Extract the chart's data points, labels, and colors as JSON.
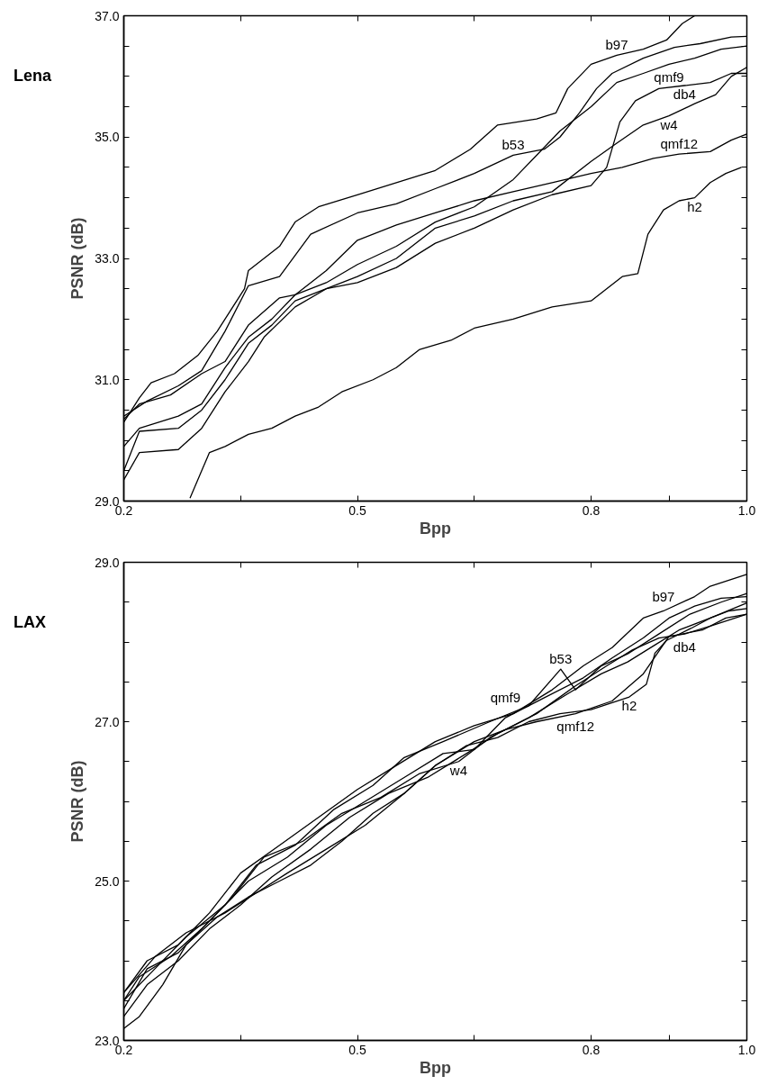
{
  "chart_data": [
    {
      "type": "line",
      "title": "Lena",
      "xlabel": "Bpp",
      "ylabel": "PSNR (dB)",
      "xlim": [
        0.2,
        1.0
      ],
      "ylim": [
        29,
        37
      ],
      "xticks": [
        {
          "value": 0.2,
          "label": "0.2"
        },
        {
          "value": 0.35,
          "label": null
        },
        {
          "value": 0.5,
          "label": "0.5"
        },
        {
          "value": 0.65,
          "label": null
        },
        {
          "value": 0.8,
          "label": "0.8"
        },
        {
          "value": 0.9,
          "label": null
        },
        {
          "value": 1.0,
          "label": "1.0"
        }
      ],
      "yticks": [
        {
          "value": 29,
          "label": "29.0"
        },
        {
          "value": 29.5,
          "label": null
        },
        {
          "value": 30,
          "label": null
        },
        {
          "value": 30.5,
          "label": null
        },
        {
          "value": 31,
          "label": "31.0"
        },
        {
          "value": 31.5,
          "label": null
        },
        {
          "value": 32,
          "label": null
        },
        {
          "value": 32.5,
          "label": null
        },
        {
          "value": 33,
          "label": "33.0"
        },
        {
          "value": 33.5,
          "label": null
        },
        {
          "value": 34,
          "label": null
        },
        {
          "value": 34.5,
          "label": null
        },
        {
          "value": 35,
          "label": "35.0"
        },
        {
          "value": 35.5,
          "label": null
        },
        {
          "value": 36,
          "label": null
        },
        {
          "value": 36.5,
          "label": null
        },
        {
          "value": 37,
          "label": "37.0"
        }
      ],
      "grid": false,
      "legend": false,
      "marker": "none",
      "line_style": "solid",
      "series": [
        {
          "name": "b97",
          "color": "#000000",
          "x": [
            0.2,
            0.22,
            0.235,
            0.265,
            0.295,
            0.32,
            0.335,
            0.355,
            0.36,
            0.4,
            0.42,
            0.45,
            0.5,
            0.55,
            0.6,
            0.645,
            0.68,
            0.73,
            0.755,
            0.77,
            0.8,
            0.833,
            0.867,
            0.897,
            0.917,
            0.933
          ],
          "values": [
            30.3,
            30.7,
            30.95,
            31.1,
            31.4,
            31.8,
            32.1,
            32.5,
            32.8,
            33.2,
            33.6,
            33.85,
            34.05,
            34.25,
            34.45,
            34.8,
            35.2,
            35.3,
            35.4,
            35.8,
            36.2,
            36.35,
            36.45,
            36.6,
            36.87,
            37.0
          ]
        },
        {
          "name": "b53",
          "color": "#000000",
          "x": [
            0.2,
            0.23,
            0.27,
            0.3,
            0.33,
            0.36,
            0.4,
            0.44,
            0.5,
            0.55,
            0.6,
            0.65,
            0.7,
            0.74,
            0.76,
            0.785,
            0.807,
            0.827,
            0.867,
            0.907,
            0.94,
            0.98,
            1.0
          ],
          "values": [
            30.4,
            30.65,
            30.9,
            31.15,
            31.8,
            32.55,
            32.7,
            33.4,
            33.75,
            33.9,
            34.15,
            34.4,
            34.7,
            34.8,
            35.0,
            35.4,
            35.8,
            36.05,
            36.3,
            36.48,
            36.54,
            36.65,
            36.66
          ]
        },
        {
          "name": "qmf9",
          "color": "#000000",
          "x": [
            0.2,
            0.22,
            0.27,
            0.3,
            0.33,
            0.36,
            0.39,
            0.42,
            0.46,
            0.5,
            0.55,
            0.6,
            0.65,
            0.7,
            0.73,
            0.76,
            0.8,
            0.833,
            0.867,
            0.9,
            0.933,
            0.967,
            1.0
          ],
          "values": [
            29.9,
            30.2,
            30.4,
            30.6,
            31.2,
            31.7,
            32.0,
            32.4,
            32.6,
            32.9,
            33.2,
            33.6,
            33.85,
            34.3,
            34.7,
            35.1,
            35.5,
            35.9,
            36.05,
            36.2,
            36.3,
            36.45,
            36.5
          ]
        },
        {
          "name": "w4",
          "color": "#000000",
          "x": [
            0.2,
            0.22,
            0.27,
            0.3,
            0.33,
            0.36,
            0.39,
            0.42,
            0.46,
            0.5,
            0.55,
            0.6,
            0.65,
            0.7,
            0.75,
            0.8,
            0.833,
            0.867,
            0.9,
            0.933,
            0.96,
            0.98,
            1.0
          ],
          "values": [
            29.5,
            30.15,
            30.2,
            30.5,
            31.0,
            31.6,
            31.9,
            32.3,
            32.5,
            32.7,
            33.0,
            33.5,
            33.7,
            33.95,
            34.1,
            34.6,
            34.9,
            35.2,
            35.35,
            35.55,
            35.7,
            36.0,
            36.15
          ]
        },
        {
          "name": "db4",
          "color": "#000000",
          "x": [
            0.2,
            0.22,
            0.27,
            0.3,
            0.33,
            0.36,
            0.38,
            0.42,
            0.46,
            0.5,
            0.55,
            0.6,
            0.65,
            0.7,
            0.75,
            0.8,
            0.82,
            0.837,
            0.857,
            0.887,
            0.92,
            0.953,
            0.98,
            1.0
          ],
          "values": [
            29.35,
            29.8,
            29.85,
            30.2,
            30.8,
            31.3,
            31.7,
            32.2,
            32.5,
            32.6,
            32.85,
            33.25,
            33.5,
            33.8,
            34.05,
            34.2,
            34.5,
            35.25,
            35.6,
            35.8,
            35.85,
            35.9,
            36.05,
            36.05
          ]
        },
        {
          "name": "qmf12",
          "color": "#000000",
          "x": [
            0.2,
            0.22,
            0.26,
            0.3,
            0.33,
            0.36,
            0.4,
            0.42,
            0.46,
            0.5,
            0.55,
            0.6,
            0.65,
            0.7,
            0.75,
            0.8,
            0.84,
            0.88,
            0.913,
            0.953,
            0.98,
            1.0
          ],
          "values": [
            30.35,
            30.6,
            30.75,
            31.1,
            31.3,
            31.9,
            32.35,
            32.4,
            32.8,
            33.3,
            33.55,
            33.75,
            33.95,
            34.1,
            34.25,
            34.4,
            34.5,
            34.65,
            34.72,
            34.76,
            34.95,
            35.05
          ]
        },
        {
          "name": "h2",
          "color": "#000000",
          "x": [
            0.285,
            0.3,
            0.31,
            0.33,
            0.36,
            0.39,
            0.42,
            0.45,
            0.48,
            0.52,
            0.55,
            0.58,
            0.62,
            0.65,
            0.7,
            0.75,
            0.8,
            0.82,
            0.84,
            0.86,
            0.873,
            0.893,
            0.913,
            0.933,
            0.953,
            0.973,
            0.993
          ],
          "values": [
            29.05,
            29.5,
            29.8,
            29.9,
            30.1,
            30.2,
            30.4,
            30.55,
            30.8,
            31.0,
            31.2,
            31.5,
            31.65,
            31.85,
            32.0,
            32.2,
            32.3,
            32.5,
            32.7,
            32.75,
            33.4,
            33.8,
            33.95,
            34.0,
            34.25,
            34.4,
            34.5
          ]
        }
      ]
    },
    {
      "type": "line",
      "title": "LAX",
      "xlabel": "Bpp",
      "ylabel": "PSNR (dB)",
      "xlim": [
        0.2,
        1.0
      ],
      "ylim": [
        23,
        29
      ],
      "xticks": [
        {
          "value": 0.2,
          "label": "0.2"
        },
        {
          "value": 0.35,
          "label": null
        },
        {
          "value": 0.5,
          "label": "0.5"
        },
        {
          "value": 0.65,
          "label": null
        },
        {
          "value": 0.8,
          "label": "0.8"
        },
        {
          "value": 0.9,
          "label": null
        },
        {
          "value": 1.0,
          "label": "1.0"
        }
      ],
      "yticks": [
        {
          "value": 23,
          "label": "23.0"
        },
        {
          "value": 23.5,
          "label": null
        },
        {
          "value": 24,
          "label": null
        },
        {
          "value": 24.5,
          "label": null
        },
        {
          "value": 25,
          "label": "25.0"
        },
        {
          "value": 25.5,
          "label": null
        },
        {
          "value": 26,
          "label": null
        },
        {
          "value": 26.5,
          "label": null
        },
        {
          "value": 27,
          "label": "27.0"
        },
        {
          "value": 27.5,
          "label": null
        },
        {
          "value": 28,
          "label": null
        },
        {
          "value": 28.5,
          "label": null
        },
        {
          "value": 29,
          "label": "29.0"
        }
      ],
      "grid": false,
      "legend": false,
      "marker": "none",
      "line_style": "solid",
      "series": [
        {
          "name": "b97",
          "color": "#000000",
          "x": [
            0.2,
            0.23,
            0.27,
            0.31,
            0.35,
            0.4,
            0.45,
            0.5,
            0.55,
            0.6,
            0.65,
            0.7,
            0.75,
            0.79,
            0.827,
            0.867,
            0.893,
            0.933,
            0.953,
            1.0
          ],
          "values": [
            23.6,
            24.0,
            24.2,
            24.6,
            25.1,
            25.45,
            25.8,
            26.15,
            26.45,
            26.75,
            26.95,
            27.1,
            27.4,
            27.7,
            27.93,
            28.3,
            28.39,
            28.57,
            28.7,
            28.85
          ]
        },
        {
          "name": "b53",
          "color": "#000000",
          "x": [
            0.2,
            0.24,
            0.28,
            0.33,
            0.37,
            0.42,
            0.47,
            0.52,
            0.56,
            0.61,
            0.67,
            0.72,
            0.761,
            0.78,
            0.813,
            0.847,
            0.887,
            0.927,
            0.967,
            1.0
          ],
          "values": [
            23.5,
            23.9,
            24.3,
            24.7,
            25.2,
            25.45,
            25.9,
            26.2,
            26.55,
            26.75,
            27.0,
            27.2,
            27.66,
            27.4,
            27.7,
            27.85,
            28.1,
            28.35,
            28.5,
            28.61
          ]
        },
        {
          "name": "qmf9",
          "color": "#000000",
          "x": [
            0.2,
            0.23,
            0.27,
            0.31,
            0.36,
            0.41,
            0.46,
            0.51,
            0.56,
            0.61,
            0.65,
            0.69,
            0.74,
            0.79,
            0.827,
            0.867,
            0.9,
            0.933,
            0.967,
            1.0
          ],
          "values": [
            23.4,
            23.9,
            24.1,
            24.5,
            25.0,
            25.3,
            25.7,
            26.0,
            26.3,
            26.6,
            26.65,
            27.05,
            27.3,
            27.55,
            27.8,
            28.05,
            28.3,
            28.45,
            28.55,
            28.57
          ]
        },
        {
          "name": "w4",
          "color": "#000000",
          "x": [
            0.2,
            0.22,
            0.26,
            0.3,
            0.34,
            0.38,
            0.43,
            0.48,
            0.53,
            0.58,
            0.63,
            0.67,
            0.72,
            0.77,
            0.813,
            0.847,
            0.88,
            0.913,
            0.953,
            1.0
          ],
          "values": [
            23.5,
            23.8,
            24.05,
            24.4,
            24.8,
            25.3,
            25.5,
            25.85,
            26.05,
            26.35,
            26.5,
            26.8,
            27.05,
            27.35,
            27.6,
            27.75,
            27.95,
            28.15,
            28.3,
            28.49
          ]
        },
        {
          "name": "db4",
          "color": "#000000",
          "x": [
            0.2,
            0.23,
            0.27,
            0.31,
            0.35,
            0.39,
            0.44,
            0.49,
            0.54,
            0.59,
            0.64,
            0.68,
            0.73,
            0.78,
            0.82,
            0.853,
            0.887,
            0.92,
            0.953,
            1.0
          ],
          "values": [
            23.3,
            23.7,
            24.0,
            24.4,
            24.7,
            25.05,
            25.4,
            25.8,
            26.1,
            26.3,
            26.6,
            26.85,
            27.1,
            27.45,
            27.7,
            27.9,
            28.05,
            28.1,
            28.2,
            28.35
          ]
        },
        {
          "name": "qmf12",
          "color": "#000000",
          "x": [
            0.2,
            0.24,
            0.28,
            0.33,
            0.37,
            0.41,
            0.46,
            0.51,
            0.56,
            0.6,
            0.65,
            0.69,
            0.73,
            0.78,
            0.827,
            0.867,
            0.9,
            0.943,
            0.973,
            1.0
          ],
          "values": [
            23.6,
            24.05,
            24.35,
            24.6,
            24.85,
            25.1,
            25.4,
            25.7,
            26.1,
            26.45,
            26.75,
            26.9,
            27.0,
            27.1,
            27.26,
            27.6,
            28.07,
            28.15,
            28.3,
            28.35
          ]
        },
        {
          "name": "h2",
          "color": "#000000",
          "x": [
            0.2,
            0.22,
            0.25,
            0.28,
            0.32,
            0.36,
            0.4,
            0.44,
            0.48,
            0.52,
            0.56,
            0.6,
            0.64,
            0.68,
            0.72,
            0.76,
            0.8,
            0.849,
            0.871,
            0.882,
            0.897,
            0.928,
            0.953,
            0.977,
            1.0
          ],
          "values": [
            23.15,
            23.3,
            23.7,
            24.2,
            24.55,
            24.8,
            25.0,
            25.2,
            25.5,
            25.85,
            26.1,
            26.45,
            26.7,
            26.8,
            27.0,
            27.1,
            27.15,
            27.31,
            27.47,
            27.86,
            28.02,
            28.17,
            28.3,
            28.39,
            28.42
          ]
        }
      ]
    }
  ]
}
